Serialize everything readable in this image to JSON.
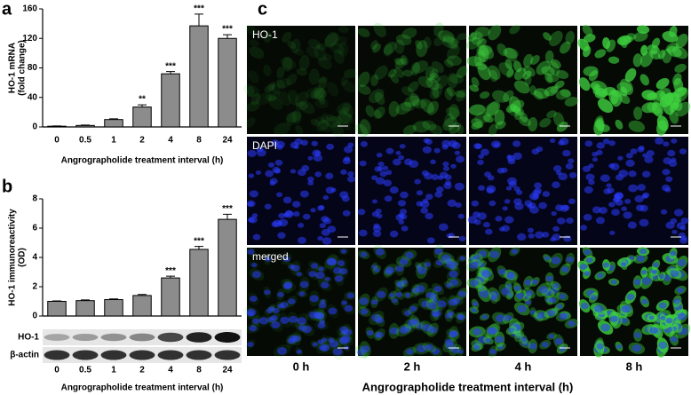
{
  "chart_data": [
    {
      "type": "bar",
      "panel": "a",
      "ylabel": [
        "HO-1 mRNA",
        "(fold change)"
      ],
      "xlabel": "Angrographolide treatment interval (h)",
      "categories": [
        "0",
        "0.5",
        "1",
        "2",
        "4",
        "8",
        "24"
      ],
      "values": [
        1,
        2,
        10,
        27,
        72,
        137,
        120
      ],
      "errors": [
        0.3,
        0.5,
        1,
        3,
        3,
        16,
        5
      ],
      "significance": [
        null,
        null,
        null,
        "**",
        "***",
        "***",
        "***"
      ],
      "color": "#8c8c8c",
      "ylim": [
        0,
        160
      ],
      "yticks": [
        0,
        40,
        80,
        120,
        160
      ]
    },
    {
      "type": "bar",
      "panel": "b",
      "ylabel": [
        "HO-1 immunoreactivity",
        "(OD)"
      ],
      "xlabel": "Angrographolide treatment interval (h)",
      "categories": [
        "0",
        "0.5",
        "1",
        "2",
        "4",
        "8",
        "24"
      ],
      "values": [
        1,
        1.05,
        1.12,
        1.4,
        2.6,
        4.55,
        6.6
      ],
      "errors": [
        0.03,
        0.05,
        0.05,
        0.07,
        0.12,
        0.2,
        0.35
      ],
      "significance": [
        null,
        null,
        null,
        null,
        "***",
        "***",
        "***"
      ],
      "color": "#8c8c8c",
      "ylim": [
        0,
        8
      ],
      "yticks": [
        0,
        2,
        4,
        6,
        8
      ],
      "blot_rows": [
        "HO-1",
        "β-actin"
      ]
    }
  ],
  "image_panel": {
    "panel": "c",
    "row_labels": [
      "HO-1",
      "DAPI",
      "merged"
    ],
    "column_labels": [
      "0 h",
      "2 h",
      "4 h",
      "8 h"
    ],
    "xlabel": "Angrographolide treatment interval (h)"
  }
}
